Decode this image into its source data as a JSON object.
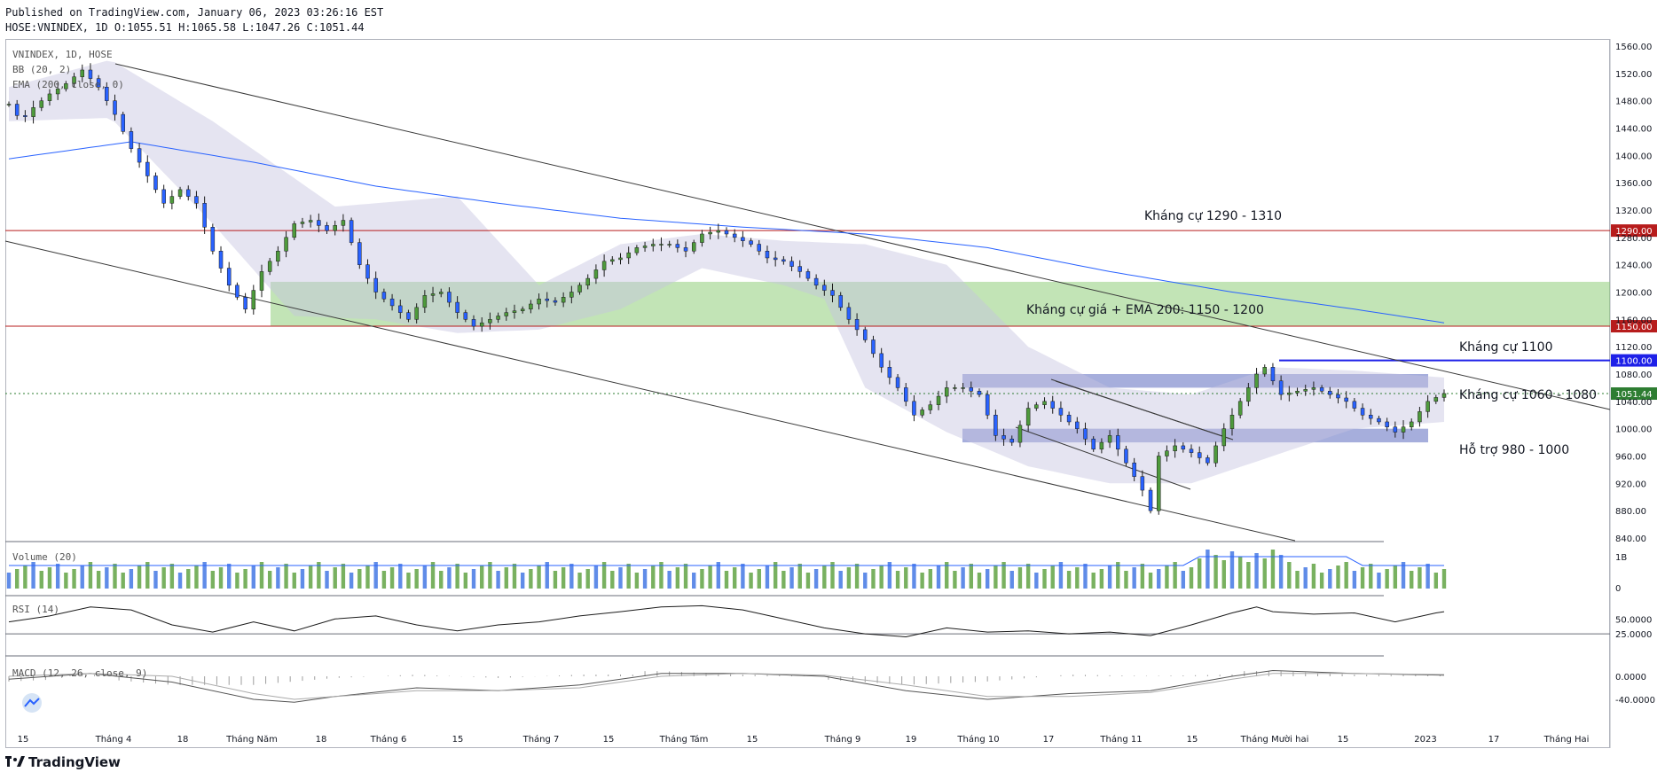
{
  "header": {
    "published": "Published on TradingView.com, January 06, 2023 03:26:16 EST",
    "ohlc": "HOSE:VNINDEX, 1D O:1055.51 H:1065.58 L:1047.26 C:1051.44"
  },
  "legend": {
    "symbol": "VNINDEX, 1D, HOSE",
    "bb": "BB (20, 2)",
    "ema": "EMA (200, close, 0)",
    "volume": "Volume (20)",
    "rsi": "RSI (14)",
    "macd": "MACD (12, 26, close, 9)"
  },
  "brand": "TradingView",
  "chart_data": {
    "type": "candlestick",
    "symbol": "HOSE:VNINDEX",
    "interval": "1D",
    "last": {
      "open": 1055.51,
      "high": 1065.58,
      "low": 1047.26,
      "close": 1051.44
    },
    "price_axis": {
      "range": [
        840,
        1560
      ],
      "ticks": [
        "1560.00",
        "1520.00",
        "1480.00",
        "1440.00",
        "1400.00",
        "1360.00",
        "1320.00",
        "1280.00",
        "1240.00",
        "1200.00",
        "1160.00",
        "1120.00",
        "1080.00",
        "1040.00",
        "1000.00",
        "960.00",
        "920.00",
        "880.00",
        "840.00"
      ]
    },
    "x_ticks": [
      "15",
      "Tháng 4",
      "18",
      "Tháng Năm",
      "18",
      "Tháng 6",
      "15",
      "Tháng 7",
      "15",
      "Tháng Tám",
      "15",
      "Tháng 9",
      "19",
      "Tháng 10",
      "17",
      "Tháng 11",
      "15",
      "Tháng Mười hai",
      "15",
      "2023",
      "17",
      "Tháng Hai"
    ],
    "price_path": [
      [
        0,
        1475
      ],
      [
        3,
        1450
      ],
      [
        6,
        1470
      ],
      [
        10,
        1490
      ],
      [
        14,
        1505
      ],
      [
        18,
        1525
      ],
      [
        22,
        1500
      ],
      [
        26,
        1460
      ],
      [
        30,
        1410
      ],
      [
        34,
        1370
      ],
      [
        38,
        1330
      ],
      [
        42,
        1350
      ],
      [
        46,
        1330
      ],
      [
        50,
        1260
      ],
      [
        54,
        1210
      ],
      [
        58,
        1175
      ],
      [
        62,
        1230
      ],
      [
        66,
        1260
      ],
      [
        70,
        1300
      ],
      [
        74,
        1305
      ],
      [
        78,
        1290
      ],
      [
        82,
        1305
      ],
      [
        86,
        1240
      ],
      [
        90,
        1200
      ],
      [
        94,
        1180
      ],
      [
        98,
        1160
      ],
      [
        102,
        1195
      ],
      [
        106,
        1200
      ],
      [
        110,
        1170
      ],
      [
        114,
        1150
      ],
      [
        118,
        1160
      ],
      [
        122,
        1170
      ],
      [
        126,
        1175
      ],
      [
        130,
        1190
      ],
      [
        134,
        1185
      ],
      [
        138,
        1200
      ],
      [
        142,
        1220
      ],
      [
        146,
        1245
      ],
      [
        150,
        1250
      ],
      [
        154,
        1265
      ],
      [
        158,
        1270
      ],
      [
        162,
        1270
      ],
      [
        166,
        1260
      ],
      [
        170,
        1285
      ],
      [
        174,
        1290
      ],
      [
        178,
        1280
      ],
      [
        182,
        1270
      ],
      [
        186,
        1250
      ],
      [
        190,
        1245
      ],
      [
        194,
        1230
      ],
      [
        198,
        1210
      ],
      [
        202,
        1195
      ],
      [
        206,
        1160
      ],
      [
        210,
        1130
      ],
      [
        214,
        1090
      ],
      [
        218,
        1060
      ],
      [
        222,
        1020
      ],
      [
        226,
        1035
      ],
      [
        230,
        1060
      ],
      [
        234,
        1060
      ],
      [
        238,
        1050
      ],
      [
        242,
        990
      ],
      [
        246,
        980
      ],
      [
        250,
        1030
      ],
      [
        254,
        1040
      ],
      [
        258,
        1020
      ],
      [
        262,
        1000
      ],
      [
        266,
        970
      ],
      [
        270,
        990
      ],
      [
        274,
        950
      ],
      [
        278,
        910
      ],
      [
        280,
        880
      ],
      [
        282,
        960
      ],
      [
        286,
        975
      ],
      [
        290,
        965
      ],
      [
        294,
        950
      ],
      [
        298,
        1000
      ],
      [
        302,
        1040
      ],
      [
        306,
        1080
      ],
      [
        308,
        1090
      ],
      [
        312,
        1050
      ],
      [
        316,
        1055
      ],
      [
        320,
        1060
      ],
      [
        324,
        1050
      ],
      [
        328,
        1040
      ],
      [
        332,
        1020
      ],
      [
        336,
        1010
      ],
      [
        340,
        995
      ],
      [
        344,
        1010
      ],
      [
        348,
        1040
      ],
      [
        352,
        1051.44
      ]
    ],
    "ema200_path": [
      [
        0,
        1395
      ],
      [
        30,
        1420
      ],
      [
        60,
        1390
      ],
      [
        90,
        1355
      ],
      [
        120,
        1330
      ],
      [
        150,
        1308
      ],
      [
        180,
        1295
      ],
      [
        210,
        1285
      ],
      [
        240,
        1265
      ],
      [
        270,
        1230
      ],
      [
        300,
        1200
      ],
      [
        330,
        1175
      ],
      [
        352,
        1155
      ]
    ],
    "bb_upper": [
      [
        0,
        1500
      ],
      [
        25,
        1540
      ],
      [
        50,
        1450
      ],
      [
        80,
        1325
      ],
      [
        110,
        1340
      ],
      [
        130,
        1210
      ],
      [
        150,
        1270
      ],
      [
        170,
        1285
      ],
      [
        190,
        1275
      ],
      [
        210,
        1270
      ],
      [
        230,
        1240
      ],
      [
        250,
        1120
      ],
      [
        270,
        1060
      ],
      [
        290,
        1050
      ],
      [
        310,
        1090
      ],
      [
        330,
        1085
      ],
      [
        352,
        1075
      ]
    ],
    "bb_lower": [
      [
        0,
        1450
      ],
      [
        25,
        1455
      ],
      [
        50,
        1300
      ],
      [
        70,
        1165
      ],
      [
        90,
        1160
      ],
      [
        110,
        1140
      ],
      [
        130,
        1145
      ],
      [
        150,
        1175
      ],
      [
        170,
        1235
      ],
      [
        190,
        1210
      ],
      [
        200,
        1190
      ],
      [
        210,
        1060
      ],
      [
        230,
        995
      ],
      [
        250,
        945
      ],
      [
        270,
        920
      ],
      [
        290,
        920
      ],
      [
        310,
        960
      ],
      [
        330,
        1000
      ],
      [
        352,
        1010
      ]
    ],
    "horizontal_levels": [
      {
        "price": 1290.0,
        "label": "1290.00",
        "color": "#b71c1c"
      },
      {
        "price": 1150.0,
        "label": "1150.00",
        "color": "#b71c1c"
      },
      {
        "price": 1100.0,
        "label": "1100.00",
        "color": "#1e20e8"
      },
      {
        "price": 1051.44,
        "label": "1051.44",
        "color": "#2e7d32"
      }
    ],
    "zones": [
      {
        "from": 1150,
        "to": 1215,
        "color": "#8fce7a"
      },
      {
        "from": 1060,
        "to": 1080,
        "color": "#5c6bc0"
      },
      {
        "from": 980,
        "to": 1000,
        "color": "#5c6bc0"
      }
    ],
    "annotations": [
      {
        "text": "Kháng cự 1290 - 1310"
      },
      {
        "text": "Kháng cự giá + EMA 200: 1150 - 1200"
      },
      {
        "text": "Kháng cự 1100"
      },
      {
        "text": "Kháng cự 1060 - 1080"
      },
      {
        "text": "Hỗ trợ 980 - 1000"
      }
    ],
    "volume_axis": {
      "ticks": [
        "1B",
        "0"
      ]
    },
    "rsi_axis": {
      "ticks": [
        "50.0000",
        "25.0000"
      ]
    },
    "rsi_path": [
      [
        0,
        45
      ],
      [
        10,
        55
      ],
      [
        20,
        70
      ],
      [
        30,
        65
      ],
      [
        40,
        40
      ],
      [
        50,
        28
      ],
      [
        60,
        45
      ],
      [
        70,
        30
      ],
      [
        80,
        50
      ],
      [
        90,
        55
      ],
      [
        100,
        40
      ],
      [
        110,
        30
      ],
      [
        120,
        40
      ],
      [
        130,
        45
      ],
      [
        140,
        55
      ],
      [
        150,
        62
      ],
      [
        160,
        70
      ],
      [
        170,
        72
      ],
      [
        180,
        65
      ],
      [
        190,
        50
      ],
      [
        200,
        35
      ],
      [
        210,
        25
      ],
      [
        220,
        20
      ],
      [
        230,
        35
      ],
      [
        240,
        28
      ],
      [
        250,
        30
      ],
      [
        260,
        25
      ],
      [
        270,
        28
      ],
      [
        280,
        22
      ],
      [
        290,
        40
      ],
      [
        300,
        60
      ],
      [
        306,
        70
      ],
      [
        310,
        62
      ],
      [
        320,
        58
      ],
      [
        330,
        60
      ],
      [
        340,
        45
      ],
      [
        350,
        60
      ],
      [
        352,
        62
      ]
    ],
    "macd_axis": {
      "ticks": [
        "0.0000",
        "-40.0000"
      ]
    },
    "macd_path": [
      [
        0,
        -5
      ],
      [
        20,
        5
      ],
      [
        40,
        -10
      ],
      [
        60,
        -40
      ],
      [
        70,
        -45
      ],
      [
        80,
        -35
      ],
      [
        100,
        -20
      ],
      [
        120,
        -25
      ],
      [
        140,
        -15
      ],
      [
        160,
        5
      ],
      [
        180,
        5
      ],
      [
        200,
        0
      ],
      [
        220,
        -25
      ],
      [
        240,
        -40
      ],
      [
        260,
        -30
      ],
      [
        280,
        -25
      ],
      [
        300,
        0
      ],
      [
        310,
        10
      ],
      [
        330,
        5
      ],
      [
        352,
        2
      ]
    ],
    "signal_path": [
      [
        0,
        0
      ],
      [
        20,
        5
      ],
      [
        40,
        0
      ],
      [
        60,
        -30
      ],
      [
        70,
        -40
      ],
      [
        80,
        -35
      ],
      [
        100,
        -25
      ],
      [
        120,
        -25
      ],
      [
        140,
        -20
      ],
      [
        160,
        0
      ],
      [
        180,
        5
      ],
      [
        200,
        2
      ],
      [
        220,
        -15
      ],
      [
        240,
        -35
      ],
      [
        260,
        -35
      ],
      [
        280,
        -28
      ],
      [
        300,
        -5
      ],
      [
        310,
        5
      ],
      [
        330,
        5
      ],
      [
        352,
        3
      ]
    ]
  }
}
